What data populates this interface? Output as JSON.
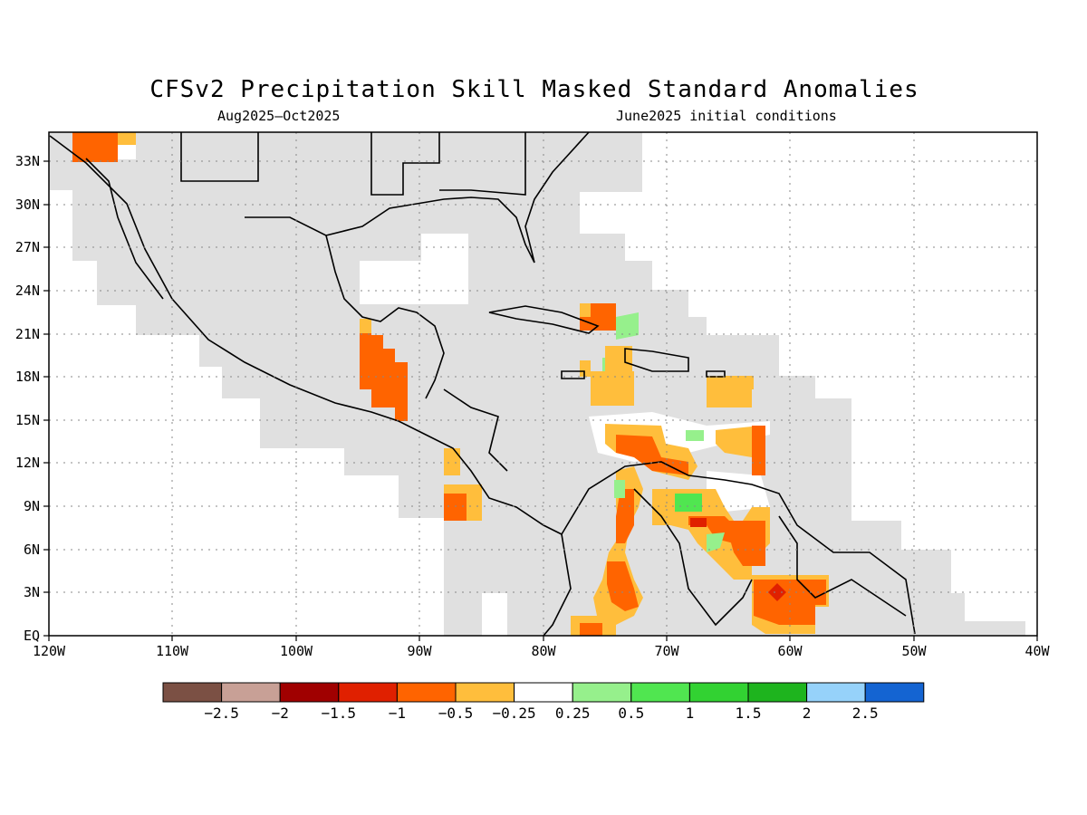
{
  "title": "CFSv2 Precipitation Skill Masked Standard Anomalies",
  "subtitle_left": "Aug2025–Oct2025",
  "subtitle_right": "June2025 initial conditions",
  "map": {
    "projection": "equirectangular",
    "lon_range": [
      -120,
      -40
    ],
    "lat_range": [
      0,
      35
    ],
    "grid": "dotted",
    "lon_ticks": [
      "120W",
      "110W",
      "100W",
      "90W",
      "80W",
      "70W",
      "60W",
      "50W",
      "40W"
    ],
    "lat_ticks": [
      "33N",
      "30N",
      "27N",
      "24N",
      "21N",
      "18N",
      "15N",
      "12N",
      "9N",
      "6N",
      "3N",
      "EQ"
    ],
    "skill_mask_color": "#e0e0e0"
  },
  "colorbar": {
    "colors": [
      "#7b5044",
      "#c8a096",
      "#a00000",
      "#e02000",
      "#ff6400",
      "#ffbe3c",
      "#ffffff",
      "#96f08c",
      "#50e650",
      "#32d232",
      "#1eb41e",
      "#96d2fa",
      "#1464d2"
    ],
    "labels": [
      "−2.5",
      "−2",
      "−1.5",
      "−1",
      "−0.5",
      "−0.25",
      "0.25",
      "0.5",
      "1",
      "1.5",
      "2",
      "2.5"
    ]
  }
}
